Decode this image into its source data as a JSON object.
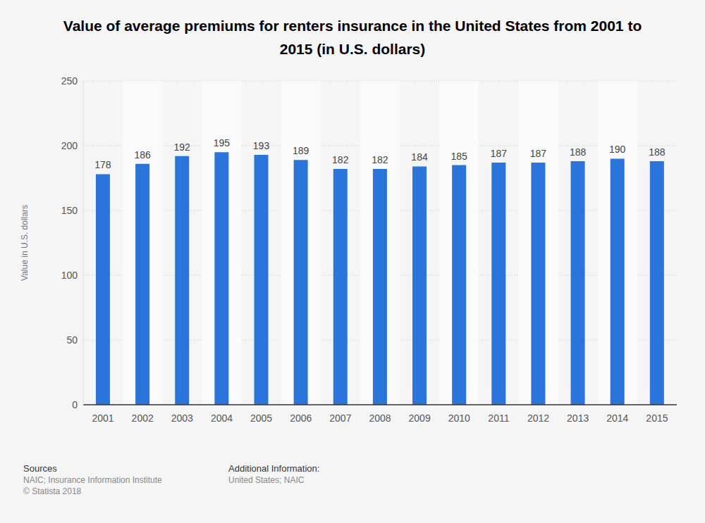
{
  "chart_data": {
    "type": "bar",
    "title": "Value of average premiums for renters insurance in the United States from 2001 to 2015 (in U.S. dollars)",
    "ylabel": "Value in U.S. dollars",
    "categories": [
      "2001",
      "2002",
      "2003",
      "2004",
      "2005",
      "2006",
      "2007",
      "2008",
      "2009",
      "2010",
      "2011",
      "2012",
      "2013",
      "2014",
      "2015"
    ],
    "values": [
      178,
      186,
      192,
      195,
      193,
      189,
      182,
      182,
      184,
      185,
      187,
      187,
      188,
      190,
      188
    ],
    "color": "#2a75dc",
    "ylim": [
      0,
      250
    ],
    "yticks": [
      0,
      50,
      100,
      150,
      200,
      250
    ],
    "grid": true,
    "data_labels": true,
    "footer": {
      "sources_title": "Sources",
      "sources": [
        "NAIC; Insurance Information Institute",
        "© Statista 2018"
      ],
      "info_title": "Additional Information:",
      "info": [
        "United States; NAIC"
      ]
    }
  }
}
